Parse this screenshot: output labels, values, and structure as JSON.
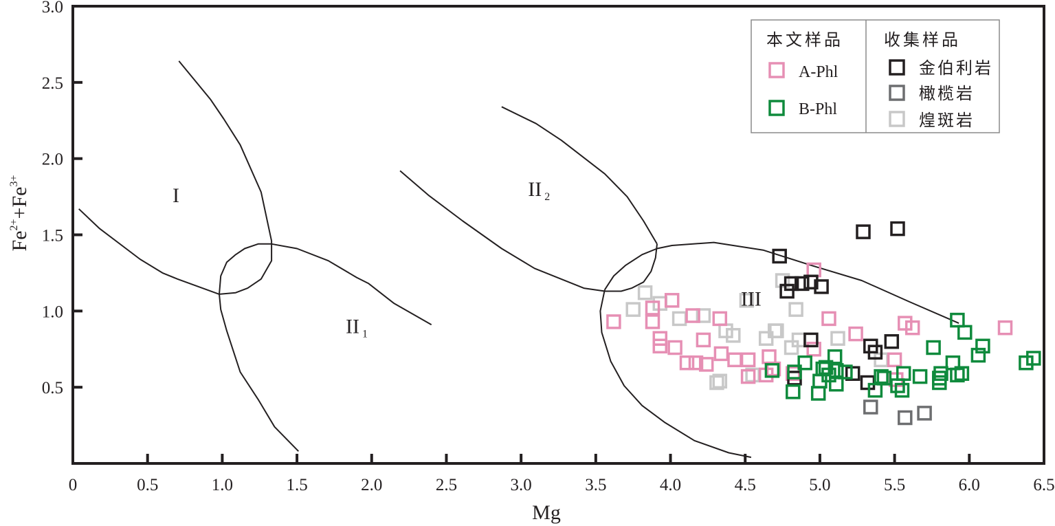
{
  "chart_data": {
    "type": "scatter",
    "title": "",
    "xlabel": "Mg",
    "ylabel_parts": {
      "base1": "Fe",
      "sup1": "2+",
      "plus": "+",
      "base2": "Fe",
      "sup2": "3+"
    },
    "ylabel": "Fe2+ + Fe3+",
    "xlim": [
      0,
      6.5
    ],
    "ylim": [
      0,
      3.0
    ],
    "grid": false,
    "x_ticks": [
      {
        "v": 0,
        "label": "0"
      },
      {
        "v": 0.5,
        "label": "0.5"
      },
      {
        "v": 1.0,
        "label": "1.0"
      },
      {
        "v": 1.5,
        "label": "1.5"
      },
      {
        "v": 2.0,
        "label": "2.0"
      },
      {
        "v": 2.5,
        "label": "2.5"
      },
      {
        "v": 3.0,
        "label": "3.0"
      },
      {
        "v": 3.5,
        "label": "3.5"
      },
      {
        "v": 4.0,
        "label": "4.0"
      },
      {
        "v": 4.5,
        "label": "4.5"
      },
      {
        "v": 5.0,
        "label": "5.0"
      },
      {
        "v": 5.5,
        "label": "5.5"
      },
      {
        "v": 6.0,
        "label": "6.0"
      },
      {
        "v": 6.5,
        "label": "6.5"
      }
    ],
    "y_ticks": [
      {
        "v": 0.5,
        "label": "0.5"
      },
      {
        "v": 1.0,
        "label": "1.0"
      },
      {
        "v": 1.5,
        "label": "1.5"
      },
      {
        "v": 2.0,
        "label": "2.0"
      },
      {
        "v": 2.5,
        "label": "2.5"
      },
      {
        "v": 3.0,
        "label": "3.0"
      }
    ],
    "legend": {
      "placement": "top-right",
      "group_this_study": "本文样品",
      "group_collected": "收集样品"
    },
    "series": [
      {
        "name": "A-Phl",
        "group": "this_study",
        "color": "#e68fb4",
        "marker": "open-square",
        "points": [
          [
            3.62,
            0.93
          ],
          [
            3.88,
            1.02
          ],
          [
            4.01,
            1.07
          ],
          [
            3.88,
            0.93
          ],
          [
            3.93,
            0.82
          ],
          [
            3.93,
            0.77
          ],
          [
            4.03,
            0.76
          ],
          [
            4.11,
            0.66
          ],
          [
            4.15,
            0.97
          ],
          [
            4.17,
            0.66
          ],
          [
            4.33,
            0.95
          ],
          [
            4.22,
            0.81
          ],
          [
            4.34,
            0.72
          ],
          [
            4.43,
            0.68
          ],
          [
            4.52,
            0.68
          ],
          [
            4.66,
            0.7
          ],
          [
            4.52,
            0.57
          ],
          [
            4.64,
            0.58
          ],
          [
            5.06,
            0.95
          ],
          [
            4.96,
            1.27
          ],
          [
            4.96,
            0.75
          ],
          [
            4.82,
            0.59
          ],
          [
            5.24,
            0.85
          ],
          [
            5.57,
            0.92
          ],
          [
            5.62,
            0.89
          ],
          [
            5.5,
            0.68
          ],
          [
            6.24,
            0.89
          ],
          [
            4.24,
            0.65
          ],
          [
            4.69,
            0.62
          ],
          [
            5.51,
            0.55
          ]
        ]
      },
      {
        "name": "B-Phl",
        "group": "this_study",
        "color": "#0f8a3c",
        "marker": "open-square",
        "points": [
          [
            4.68,
            0.61
          ],
          [
            4.83,
            0.6
          ],
          [
            4.9,
            0.66
          ],
          [
            5.02,
            0.62
          ],
          [
            5.1,
            0.7
          ],
          [
            5.11,
            0.61
          ],
          [
            5.11,
            0.52
          ],
          [
            5.0,
            0.54
          ],
          [
            4.82,
            0.47
          ],
          [
            4.99,
            0.46
          ],
          [
            5.37,
            0.48
          ],
          [
            5.41,
            0.57
          ],
          [
            5.56,
            0.59
          ],
          [
            5.52,
            0.51
          ],
          [
            5.55,
            0.48
          ],
          [
            5.67,
            0.57
          ],
          [
            5.76,
            0.76
          ],
          [
            5.8,
            0.56
          ],
          [
            5.92,
            0.94
          ],
          [
            5.97,
            0.86
          ],
          [
            6.09,
            0.77
          ],
          [
            6.06,
            0.71
          ],
          [
            5.89,
            0.66
          ],
          [
            5.81,
            0.59
          ],
          [
            5.92,
            0.58
          ],
          [
            5.95,
            0.59
          ],
          [
            5.8,
            0.53
          ],
          [
            6.38,
            0.66
          ],
          [
            6.43,
            0.69
          ],
          [
            5.43,
            0.56
          ],
          [
            5.17,
            0.6
          ],
          [
            5.06,
            0.58
          ],
          [
            5.04,
            0.63
          ]
        ]
      },
      {
        "name": "金伯利岩",
        "group": "collected",
        "color": "#231f20",
        "marker": "open-square",
        "points": [
          [
            4.73,
            1.36
          ],
          [
            5.29,
            1.52
          ],
          [
            5.52,
            1.54
          ],
          [
            4.81,
            1.18
          ],
          [
            4.78,
            1.13
          ],
          [
            4.88,
            1.18
          ],
          [
            4.94,
            1.19
          ],
          [
            5.01,
            1.16
          ],
          [
            4.94,
            0.81
          ],
          [
            4.83,
            0.56
          ],
          [
            5.22,
            0.59
          ],
          [
            5.34,
            0.77
          ],
          [
            5.37,
            0.73
          ],
          [
            5.48,
            0.8
          ],
          [
            5.32,
            0.53
          ]
        ]
      },
      {
        "name": "橄榄岩",
        "group": "collected",
        "color": "#6d6e70",
        "marker": "open-square",
        "points": [
          [
            5.34,
            0.37
          ],
          [
            5.57,
            0.3
          ],
          [
            5.7,
            0.33
          ]
        ]
      },
      {
        "name": "煌斑岩",
        "group": "collected",
        "color": "#c8c8c8",
        "marker": "open-square",
        "points": [
          [
            3.83,
            1.12
          ],
          [
            3.75,
            1.01
          ],
          [
            3.93,
            1.05
          ],
          [
            4.06,
            0.95
          ],
          [
            4.22,
            0.97
          ],
          [
            4.37,
            0.87
          ],
          [
            4.42,
            0.84
          ],
          [
            4.33,
            0.54
          ],
          [
            4.31,
            0.53
          ],
          [
            4.75,
            1.2
          ],
          [
            4.84,
            1.01
          ],
          [
            4.71,
            0.87
          ],
          [
            4.86,
            0.81
          ],
          [
            4.81,
            0.76
          ],
          [
            5.12,
            0.82
          ],
          [
            4.64,
            0.82
          ],
          [
            4.7,
            0.87
          ],
          [
            5.41,
            0.68
          ],
          [
            4.51,
            1.07
          ],
          [
            4.55,
            0.58
          ]
        ]
      }
    ],
    "field_boundaries": [
      {
        "name": "boundary-I-lower",
        "points": [
          [
            0.04,
            1.67
          ],
          [
            0.18,
            1.54
          ],
          [
            0.45,
            1.34
          ],
          [
            0.6,
            1.25
          ],
          [
            0.7,
            1.21
          ],
          [
            0.98,
            1.11
          ]
        ]
      },
      {
        "name": "boundary-I-right",
        "points": [
          [
            0.71,
            2.64
          ],
          [
            0.92,
            2.39
          ],
          [
            1.01,
            2.26
          ],
          [
            1.12,
            2.09
          ],
          [
            1.26,
            1.78
          ],
          [
            1.33,
            1.46
          ],
          [
            1.33,
            1.33
          ],
          [
            1.26,
            1.21
          ],
          [
            1.17,
            1.15
          ],
          [
            1.09,
            1.12
          ],
          [
            0.98,
            1.11
          ]
        ]
      },
      {
        "name": "boundary-lens-top",
        "points": [
          [
            0.98,
            1.11
          ],
          [
            0.99,
            1.23
          ],
          [
            1.03,
            1.32
          ],
          [
            1.09,
            1.37
          ],
          [
            1.15,
            1.41
          ],
          [
            1.24,
            1.44
          ],
          [
            1.33,
            1.44
          ]
        ]
      },
      {
        "name": "boundary-II1-upper",
        "points": [
          [
            1.33,
            1.44
          ],
          [
            1.5,
            1.41
          ],
          [
            1.71,
            1.33
          ],
          [
            1.9,
            1.22
          ],
          [
            1.98,
            1.18
          ],
          [
            2.15,
            1.05
          ],
          [
            2.4,
            0.91
          ]
        ]
      },
      {
        "name": "boundary-II1-left",
        "points": [
          [
            0.98,
            1.11
          ],
          [
            0.99,
            1.01
          ],
          [
            1.03,
            0.87
          ],
          [
            1.12,
            0.6
          ],
          [
            1.24,
            0.42
          ],
          [
            1.35,
            0.24
          ],
          [
            1.51,
            0.08
          ]
        ]
      },
      {
        "name": "boundary-II2-lower",
        "points": [
          [
            2.19,
            1.92
          ],
          [
            2.38,
            1.76
          ],
          [
            2.61,
            1.59
          ],
          [
            2.87,
            1.41
          ],
          [
            3.09,
            1.28
          ],
          [
            3.42,
            1.15
          ],
          [
            3.56,
            1.13
          ],
          [
            3.67,
            1.13
          ],
          [
            3.74,
            1.15
          ],
          [
            3.82,
            1.19
          ],
          [
            3.87,
            1.26
          ],
          [
            3.9,
            1.35
          ],
          [
            3.91,
            1.44
          ]
        ]
      },
      {
        "name": "boundary-II2-upper",
        "points": [
          [
            2.87,
            2.34
          ],
          [
            3.1,
            2.23
          ],
          [
            3.27,
            2.12
          ],
          [
            3.56,
            1.9
          ],
          [
            3.71,
            1.75
          ],
          [
            3.82,
            1.59
          ],
          [
            3.91,
            1.44
          ]
        ]
      },
      {
        "name": "boundary-III-upper",
        "points": [
          [
            3.56,
            1.14
          ],
          [
            3.62,
            1.23
          ],
          [
            3.7,
            1.3
          ],
          [
            3.81,
            1.37
          ],
          [
            3.91,
            1.41
          ],
          [
            4.01,
            1.43
          ],
          [
            4.29,
            1.45
          ],
          [
            4.62,
            1.4
          ],
          [
            4.94,
            1.3
          ],
          [
            5.28,
            1.2
          ],
          [
            5.6,
            1.06
          ],
          [
            5.93,
            0.92
          ]
        ]
      },
      {
        "name": "boundary-III-lower",
        "points": [
          [
            3.56,
            1.14
          ],
          [
            3.53,
            1.0
          ],
          [
            3.54,
            0.86
          ],
          [
            3.6,
            0.67
          ],
          [
            3.69,
            0.51
          ],
          [
            3.81,
            0.38
          ],
          [
            3.96,
            0.27
          ],
          [
            4.16,
            0.15
          ],
          [
            4.39,
            0.07
          ],
          [
            4.54,
            0.04
          ]
        ]
      }
    ],
    "region_labels": [
      {
        "name": "region-I",
        "text": "I",
        "sub": "",
        "x": 0.69,
        "y": 1.76
      },
      {
        "name": "region-II1",
        "text": "II",
        "sub": "1",
        "x": 1.9,
        "y": 0.9
      },
      {
        "name": "region-II2",
        "text": "II",
        "sub": "2",
        "x": 3.12,
        "y": 1.8
      },
      {
        "name": "region-III",
        "text": "III",
        "sub": "",
        "x": 4.54,
        "y": 1.08
      }
    ]
  }
}
